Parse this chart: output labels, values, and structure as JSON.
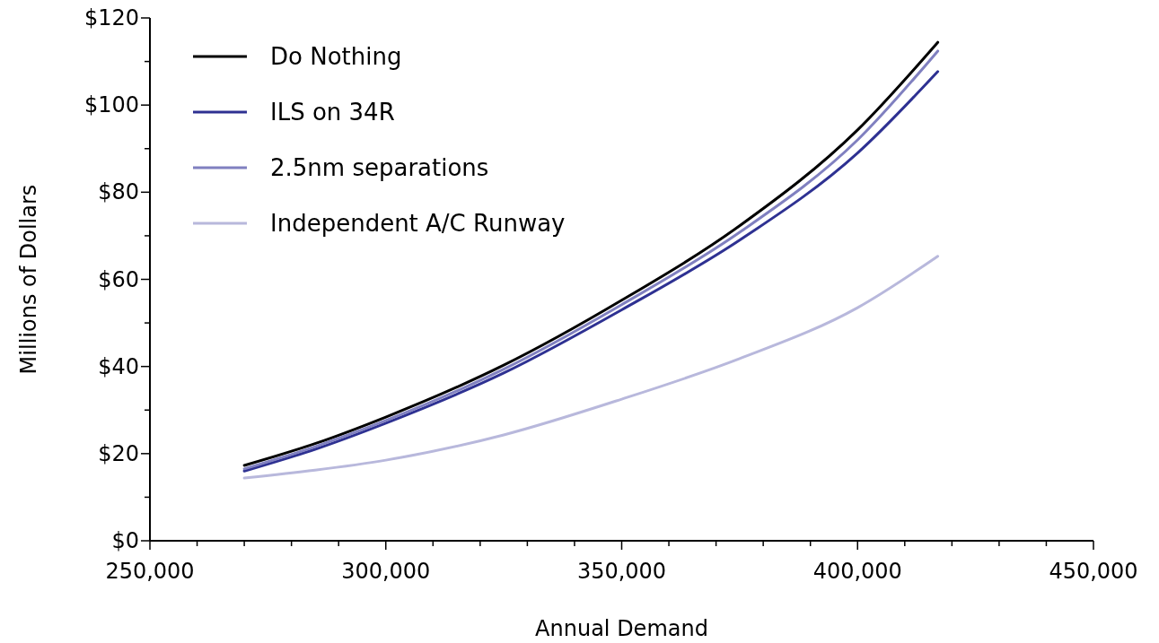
{
  "chart_data": {
    "type": "line",
    "xlabel": "Annual Demand",
    "ylabel": "Millions of Dollars",
    "x": [
      270000,
      285000,
      300000,
      325000,
      350000,
      375000,
      400000,
      417000
    ],
    "series": [
      {
        "name": "Do Nothing",
        "color": "#000000",
        "values": [
          17.3,
          22.3,
          28.4,
          40.3,
          55.2,
          72.3,
          94.3,
          114.4
        ]
      },
      {
        "name": "ILS on 34R",
        "color": "#2e3192",
        "values": [
          16.0,
          21.0,
          27.0,
          38.5,
          53.0,
          69.0,
          89.0,
          107.7
        ]
      },
      {
        "name": "2.5nm separations",
        "color": "#8080c0",
        "values": [
          16.5,
          21.6,
          27.6,
          39.4,
          54.2,
          70.8,
          92.0,
          112.4
        ]
      },
      {
        "name": "Independent A/C Runway",
        "color": "#b8b8dc",
        "values": [
          14.4,
          16.2,
          18.5,
          24.3,
          32.5,
          41.8,
          53.5,
          65.3
        ]
      }
    ],
    "xlim": [
      250000,
      450000
    ],
    "xticks": [
      {
        "value": 250000,
        "label": "250,000"
      },
      {
        "value": 260000,
        "label": null
      },
      {
        "value": 270000,
        "label": null
      },
      {
        "value": 280000,
        "label": null
      },
      {
        "value": 290000,
        "label": null
      },
      {
        "value": 300000,
        "label": "300,000"
      },
      {
        "value": 310000,
        "label": null
      },
      {
        "value": 320000,
        "label": null
      },
      {
        "value": 330000,
        "label": null
      },
      {
        "value": 340000,
        "label": null
      },
      {
        "value": 350000,
        "label": "350,000"
      },
      {
        "value": 360000,
        "label": null
      },
      {
        "value": 370000,
        "label": null
      },
      {
        "value": 380000,
        "label": null
      },
      {
        "value": 390000,
        "label": null
      },
      {
        "value": 400000,
        "label": "400,000"
      },
      {
        "value": 410000,
        "label": null
      },
      {
        "value": 420000,
        "label": null
      },
      {
        "value": 430000,
        "label": null
      },
      {
        "value": 440000,
        "label": null
      },
      {
        "value": 450000,
        "label": "450,000"
      }
    ],
    "ylim": [
      0,
      120
    ],
    "yticks": [
      {
        "value": 0,
        "label": "$0"
      },
      {
        "value": 10,
        "label": null
      },
      {
        "value": 20,
        "label": "$20"
      },
      {
        "value": 30,
        "label": null
      },
      {
        "value": 40,
        "label": "$40"
      },
      {
        "value": 50,
        "label": null
      },
      {
        "value": 60,
        "label": "$60"
      },
      {
        "value": 70,
        "label": null
      },
      {
        "value": 80,
        "label": "$80"
      },
      {
        "value": 90,
        "label": null
      },
      {
        "value": 100,
        "label": "$100"
      },
      {
        "value": 110,
        "label": null
      },
      {
        "value": 120,
        "label": "$120"
      }
    ],
    "legend": "top left",
    "grid": false,
    "marker": "none",
    "line_style": "solid"
  }
}
